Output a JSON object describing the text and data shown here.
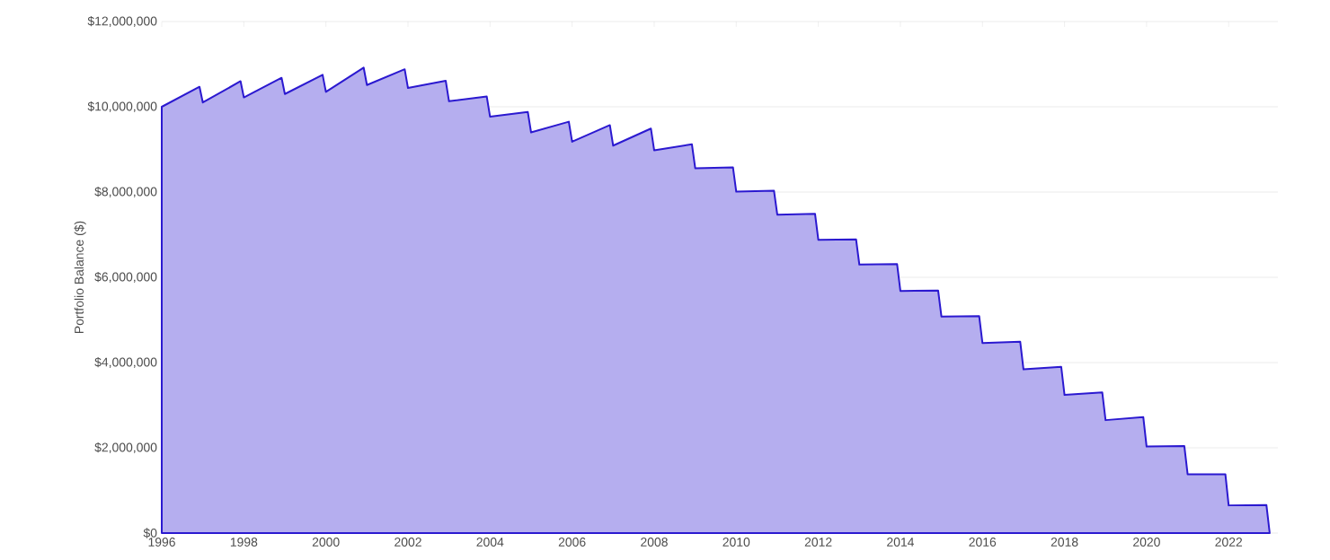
{
  "chart_data": {
    "type": "area",
    "ylabel": "Portfolio Balance ($)",
    "x": [
      1996,
      1996.92,
      1997,
      1997.92,
      1998,
      1998.92,
      1999,
      1999.92,
      2000,
      2000.92,
      2001,
      2001.92,
      2002,
      2002.92,
      2003,
      2003.92,
      2004,
      2004.92,
      2005,
      2005.92,
      2006,
      2006.92,
      2007,
      2007.92,
      2008,
      2008.92,
      2009,
      2009.92,
      2010,
      2010.92,
      2011,
      2011.92,
      2012,
      2012.92,
      2013,
      2013.92,
      2014,
      2014.92,
      2015,
      2015.92,
      2016,
      2016.92,
      2017,
      2017.92,
      2018,
      2018.92,
      2019,
      2019.92,
      2020,
      2020.92,
      2021,
      2021.92,
      2022,
      2022.92,
      2023
    ],
    "series": [
      {
        "color": "#2b19d0",
        "values": [
          10000000,
          10470000,
          10100000,
          10600000,
          10220000,
          10680000,
          10300000,
          10750000,
          10350000,
          10920000,
          10510000,
          10880000,
          10440000,
          10610000,
          10130000,
          10240000,
          9770000,
          9880000,
          9400000,
          9650000,
          9180000,
          9570000,
          9090000,
          9490000,
          8980000,
          9120000,
          8560000,
          8580000,
          8010000,
          8030000,
          7470000,
          7490000,
          6880000,
          6890000,
          6300000,
          6310000,
          5680000,
          5690000,
          5080000,
          5090000,
          4460000,
          4490000,
          3840000,
          3900000,
          3240000,
          3300000,
          2650000,
          2720000,
          2030000,
          2040000,
          1380000,
          1380000,
          650000,
          660000,
          0
        ]
      }
    ],
    "xlim": [
      1996,
      2023.2
    ],
    "ylim": [
      0,
      12000000
    ],
    "xticks": [
      1996,
      1998,
      2000,
      2002,
      2004,
      2006,
      2008,
      2010,
      2012,
      2014,
      2016,
      2018,
      2020,
      2022
    ],
    "yticks": [
      {
        "value": 0,
        "label": "$0"
      },
      {
        "value": 2000000,
        "label": "$2,000,000"
      },
      {
        "value": 4000000,
        "label": "$4,000,000"
      },
      {
        "value": 6000000,
        "label": "$6,000,000"
      },
      {
        "value": 8000000,
        "label": "$8,000,000"
      },
      {
        "value": 10000000,
        "label": "$10,000,000"
      },
      {
        "value": 12000000,
        "label": "$12,000,000"
      }
    ],
    "grid": "y",
    "line_style": "solid",
    "marker": "none"
  }
}
